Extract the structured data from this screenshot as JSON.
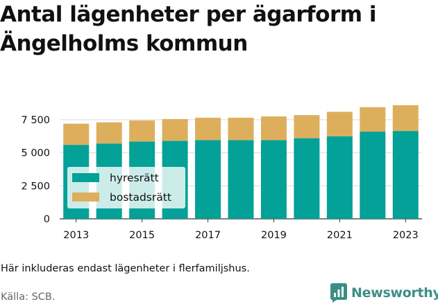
{
  "title_lines": [
    "Antal lägenheter per ägarform i",
    "Ängelholms kommun"
  ],
  "note": "Här inkluderas endast lägenheter i flerfamiljshus.",
  "source": "Källa: SCB.",
  "brand": "Newsworthy",
  "colors": {
    "hyresratt": "#03a197",
    "bostadsratt": "#ddaf5d",
    "brand": "#3a8f85",
    "grid": "#d9d9d9"
  },
  "chart_data": {
    "type": "bar",
    "stacked": true,
    "categories": [
      "2013",
      "2014",
      "2015",
      "2016",
      "2017",
      "2018",
      "2019",
      "2020",
      "2021",
      "2022",
      "2023"
    ],
    "series": [
      {
        "name": "hyresrätt",
        "values": [
          5600,
          5700,
          5850,
          5900,
          5950,
          5950,
          5950,
          6100,
          6250,
          6600,
          6650
        ]
      },
      {
        "name": "bostadsrätt",
        "values": [
          1600,
          1600,
          1600,
          1650,
          1700,
          1700,
          1800,
          1750,
          1850,
          1850,
          1950
        ]
      }
    ],
    "xticks": [
      "2013",
      "2015",
      "2017",
      "2019",
      "2021",
      "2023"
    ],
    "yticks": [
      0,
      2500,
      5000,
      7500
    ],
    "ytick_labels": [
      "0",
      "2 500",
      "5 000",
      "7 500"
    ],
    "ylim": [
      0,
      8700
    ],
    "grid": true,
    "legend_position": "left-center"
  }
}
